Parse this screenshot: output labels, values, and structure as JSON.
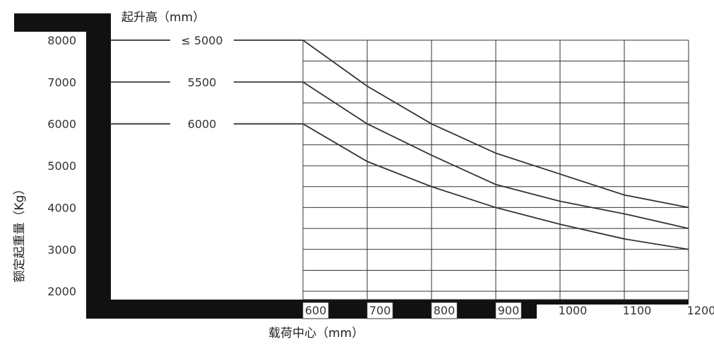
{
  "chart_data": {
    "type": "line",
    "title": "起升高（mm）",
    "xlabel": "载荷中心（mm）",
    "ylabel": "额定起重量（Kg）",
    "x": [
      600,
      700,
      800,
      900,
      1000,
      1100,
      1200
    ],
    "x_ticks": [
      "600",
      "700",
      "800",
      "900",
      "1000",
      "1100",
      "1200"
    ],
    "y_ticks": [
      "2000",
      "3000",
      "4000",
      "5000",
      "6000",
      "7000",
      "8000"
    ],
    "xlim": [
      300,
      1200
    ],
    "ylim": [
      1800,
      8000
    ],
    "grid": true,
    "series": [
      {
        "name": "≤ 5000",
        "values": [
          8000,
          6900,
          6000,
          5300,
          4800,
          4300,
          4000
        ]
      },
      {
        "name": "5500",
        "values": [
          7000,
          6000,
          5250,
          4550,
          4150,
          3850,
          3500
        ]
      },
      {
        "name": "6000",
        "values": [
          6000,
          5100,
          4500,
          4000,
          3600,
          3250,
          3000
        ]
      }
    ]
  }
}
